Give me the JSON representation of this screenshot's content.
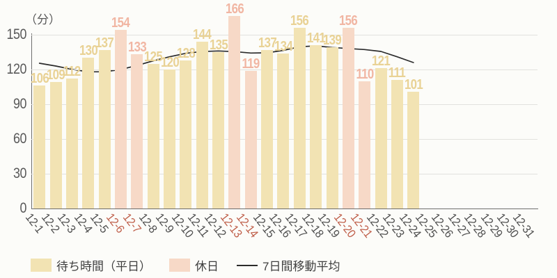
{
  "unit_label": "（分）",
  "legend": {
    "weekday_label": "待ち時間（平日）",
    "holiday_label": "休日",
    "ma_label": "7日間移動平均"
  },
  "colors": {
    "weekday_bar": "#f2e3b3",
    "holiday_bar": "#f7d9c7",
    "weekday_value_label": "#e9d295",
    "holiday_value_label": "#f1b6a3",
    "tick_label": "#4f4f4f",
    "holiday_tick_label": "#bf5f4a",
    "y_tick_label": "#595959",
    "ma_line": "#2b2b2b",
    "gridline": "#e2e2de",
    "axis_line": "#6e6e6e",
    "background": "#fcfcf9"
  },
  "chart_data": {
    "type": "bar",
    "title": "",
    "xlabel": "",
    "ylabel": "（分）",
    "ylim": [
      0,
      175
    ],
    "yticks": [
      0,
      30,
      60,
      90,
      120,
      150
    ],
    "grid": true,
    "legend_position": "bottom",
    "categories": [
      "12-1",
      "12-2",
      "12-3",
      "12-4",
      "12-5",
      "12-6",
      "12-7",
      "12-8",
      "12-9",
      "12-10",
      "12-11",
      "12-12",
      "12-13",
      "12-14",
      "12-15",
      "12-16",
      "12-17",
      "12-18",
      "12-19",
      "12-20",
      "12-21",
      "12-22",
      "12-23",
      "12-24",
      "12-25",
      "12-26",
      "12-27",
      "12-28",
      "12-29",
      "12-30",
      "12-31"
    ],
    "series": [
      {
        "name": "待ち時間（平日）",
        "type": "bar",
        "values": [
          106,
          109,
          112,
          130,
          137,
          null,
          null,
          125,
          120,
          128,
          144,
          135,
          null,
          null,
          137,
          134,
          156,
          141,
          139,
          null,
          null,
          121,
          111,
          101,
          null,
          null,
          null,
          null,
          null,
          null,
          null
        ]
      },
      {
        "name": "休日",
        "type": "bar",
        "values": [
          null,
          null,
          null,
          null,
          null,
          154,
          133,
          null,
          null,
          null,
          null,
          null,
          166,
          119,
          null,
          null,
          null,
          null,
          null,
          156,
          110,
          null,
          null,
          null,
          null,
          null,
          null,
          null,
          null,
          null,
          null
        ]
      },
      {
        "name": "7日間移動平均",
        "type": "line",
        "values": [
          125.4,
          123.0,
          120.1,
          118.0,
          118.0,
          120.0,
          123.5,
          127.5,
          131.0,
          134.0,
          135.5,
          136.0,
          135.4,
          134.2,
          134.4,
          136.5,
          139.6,
          140.4,
          139.0,
          138.1,
          137.2,
          135.6,
          131.0,
          126.0,
          null,
          null,
          null,
          null,
          null,
          null,
          null
        ]
      }
    ]
  }
}
